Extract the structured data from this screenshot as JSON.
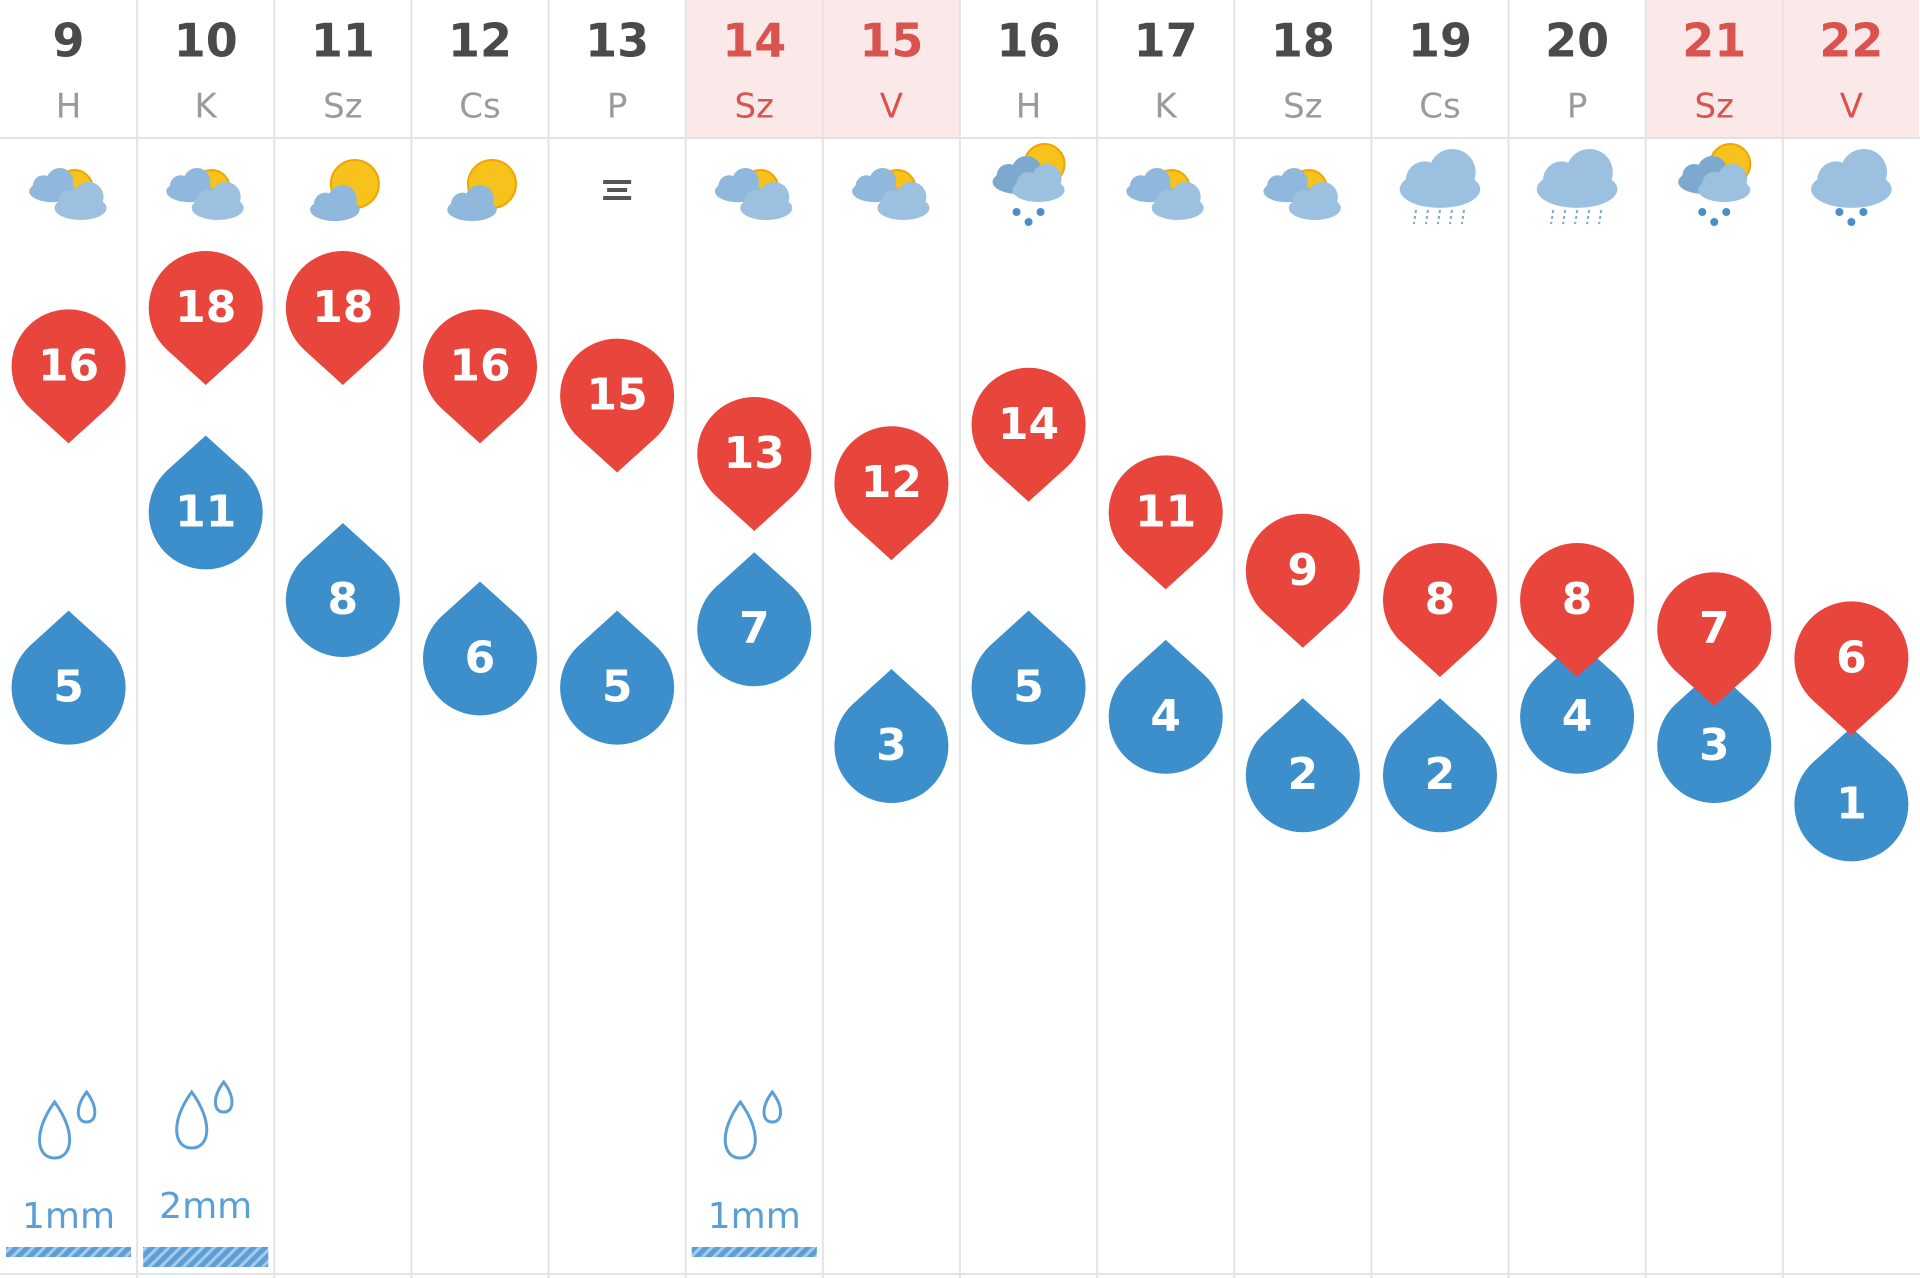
{
  "colors": {
    "weekend_bg": "#fbe9e9",
    "weekend_text": "#d9534f",
    "weekday_number": "#4a4a4a",
    "weekday_label": "#9a9a9a",
    "max_temp": "#e8453c",
    "min_temp": "#3d8fcc",
    "precip": "#5b9fd6",
    "grid": "#e3e3e3"
  },
  "days": [
    {
      "day": "9",
      "weekday": "H",
      "weekend": false,
      "icon": "partly-cloudy-icon"
    },
    {
      "day": "10",
      "weekday": "K",
      "weekend": false,
      "icon": "partly-cloudy-icon"
    },
    {
      "day": "11",
      "weekday": "Sz",
      "weekend": false,
      "icon": "sunny-cloud-icon"
    },
    {
      "day": "12",
      "weekday": "Cs",
      "weekend": false,
      "icon": "sunny-cloud-icon"
    },
    {
      "day": "13",
      "weekday": "P",
      "weekend": false,
      "icon": "fog-icon"
    },
    {
      "day": "14",
      "weekday": "Sz",
      "weekend": true,
      "icon": "partly-cloudy-icon"
    },
    {
      "day": "15",
      "weekday": "V",
      "weekend": true,
      "icon": "partly-cloudy-icon"
    },
    {
      "day": "16",
      "weekday": "H",
      "weekend": false,
      "icon": "sun-shower-icon"
    },
    {
      "day": "17",
      "weekday": "K",
      "weekend": false,
      "icon": "partly-cloudy-icon"
    },
    {
      "day": "18",
      "weekday": "Sz",
      "weekend": false,
      "icon": "partly-cloudy-icon"
    },
    {
      "day": "19",
      "weekday": "Cs",
      "weekend": false,
      "icon": "drizzle-icon"
    },
    {
      "day": "20",
      "weekday": "P",
      "weekend": false,
      "icon": "drizzle-icon"
    },
    {
      "day": "21",
      "weekday": "Sz",
      "weekend": true,
      "icon": "sun-shower-icon"
    },
    {
      "day": "22",
      "weekday": "V",
      "weekend": true,
      "icon": "rain-icon"
    }
  ],
  "chart_data": {
    "type": "line",
    "categories": [
      "9",
      "10",
      "11",
      "12",
      "13",
      "14",
      "15",
      "16",
      "17",
      "18",
      "19",
      "20",
      "21",
      "22"
    ],
    "series": [
      {
        "values": [
          16,
          18,
          18,
          16,
          15,
          13,
          12,
          14,
          11,
          9,
          8,
          8,
          7,
          6
        ]
      },
      {
        "values": [
          5,
          11,
          8,
          6,
          5,
          7,
          3,
          5,
          4,
          2,
          2,
          4,
          3,
          1
        ]
      }
    ],
    "precipitation": [
      {
        "day": "9",
        "label": "1mm",
        "mm": 1
      },
      {
        "day": "10",
        "label": "2mm",
        "mm": 2
      },
      {
        "day": "14",
        "label": "1mm",
        "mm": 1
      }
    ]
  }
}
